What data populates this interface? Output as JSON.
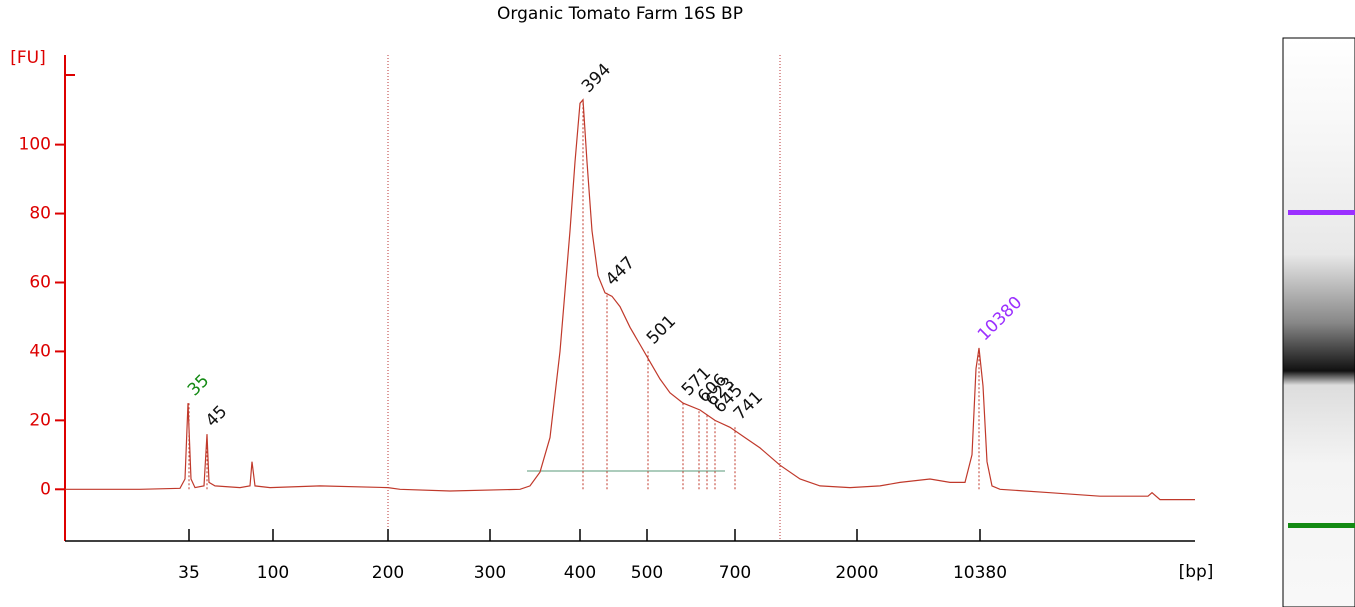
{
  "chart_data": {
    "type": "line",
    "title": "Organic Tomato Farm 16S BP",
    "ylabel": "[FU]",
    "xlabel": "[bp]",
    "color": "#c0392b",
    "axis_color": "#dd0000",
    "xlim": [
      65,
      1195
    ],
    "ylim": [
      -15,
      126
    ],
    "yticks": [
      0,
      20,
      40,
      60,
      80,
      100
    ],
    "xticks": [
      {
        "value": 189,
        "label": "35"
      },
      {
        "value": 273,
        "label": "100"
      },
      {
        "value": 388,
        "label": "200"
      },
      {
        "value": 490,
        "label": "300"
      },
      {
        "value": 580,
        "label": "400"
      },
      {
        "value": 647,
        "label": "500"
      },
      {
        "value": 735,
        "label": "700"
      },
      {
        "value": 857,
        "label": "2000"
      },
      {
        "value": 980,
        "label": "10380"
      }
    ],
    "x": [
      65,
      140,
      180,
      185,
      188,
      191,
      195,
      204,
      207,
      209,
      215,
      240,
      250,
      252,
      255,
      270,
      320,
      388,
      400,
      450,
      520,
      530,
      540,
      550,
      560,
      570,
      575,
      580,
      583,
      587,
      592,
      598,
      605,
      612,
      620,
      630,
      640,
      650,
      660,
      670,
      683,
      700,
      715,
      730,
      745,
      760,
      780,
      800,
      820,
      850,
      880,
      900,
      930,
      950,
      965,
      972,
      976,
      979,
      983,
      987,
      992,
      1000,
      1050,
      1100,
      1148,
      1152,
      1160,
      1195
    ],
    "values": [
      0,
      0,
      0.3,
      3,
      25,
      3,
      0.5,
      1,
      16,
      2,
      1,
      0.5,
      1,
      8,
      1,
      0.5,
      1,
      0.5,
      0,
      -0.5,
      0,
      1,
      5,
      15,
      40,
      75,
      95,
      112,
      113,
      95,
      75,
      62,
      57,
      56,
      53,
      47,
      42,
      37,
      32,
      28,
      25,
      23,
      20,
      18,
      15,
      12,
      7,
      3,
      1,
      0.5,
      1,
      2,
      3,
      2,
      2,
      10,
      35,
      41,
      30,
      8,
      1,
      0,
      -1,
      -2,
      -2,
      -1,
      -3,
      -3
    ],
    "peaks": [
      {
        "bp": 35,
        "x": 189,
        "y": 25,
        "color": "#138a13"
      },
      {
        "bp": 45,
        "x": 207,
        "y": 16,
        "color": "#111111"
      },
      {
        "bp": 394,
        "x": 583,
        "y": 113,
        "color": "#111111"
      },
      {
        "bp": 447,
        "x": 607,
        "y": 57,
        "color": "#111111"
      },
      {
        "bp": 501,
        "x": 648,
        "y": 40,
        "color": "#111111"
      },
      {
        "bp": 571,
        "x": 683,
        "y": 25,
        "color": "#111111"
      },
      {
        "bp": 606,
        "x": 699,
        "y": 23,
        "color": "#111111"
      },
      {
        "bp": 623,
        "x": 707,
        "y": 22,
        "color": "#111111"
      },
      {
        "bp": 645,
        "x": 715,
        "y": 20,
        "color": "#111111"
      },
      {
        "bp": 741,
        "x": 735,
        "y": 18,
        "color": "#111111"
      },
      {
        "bp": 10380,
        "x": 979,
        "y": 41,
        "color": "#9b30ff"
      }
    ]
  }
}
